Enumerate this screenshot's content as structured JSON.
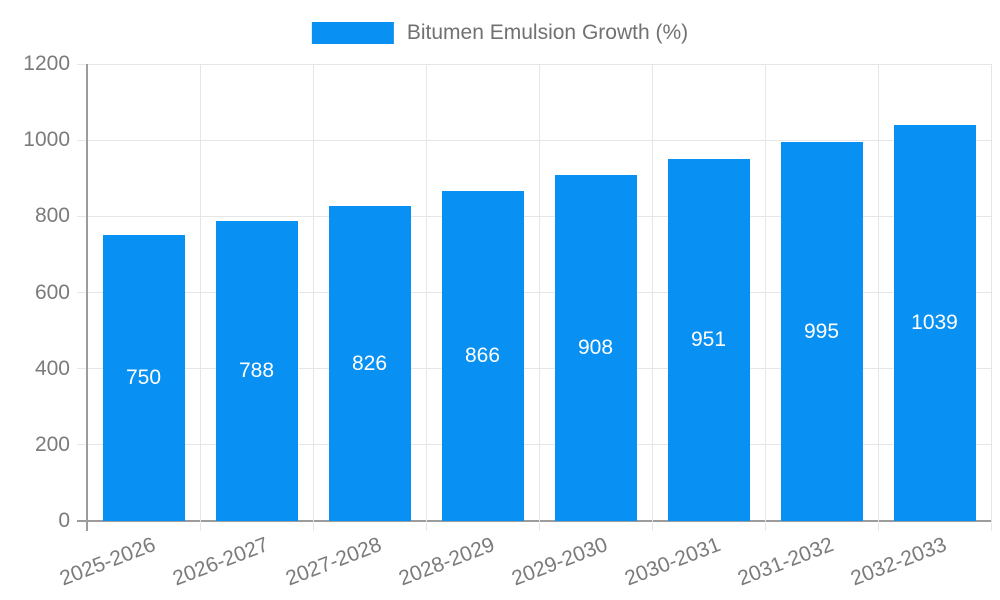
{
  "legend": {
    "label": "Bitumen Emulsion Growth (%)"
  },
  "colors": {
    "bar": "#0890f2",
    "grid": "#e6e6e6",
    "axis": "#9c9c9c",
    "tick_label": "#7b7b7b",
    "legend_text": "#717171",
    "value_label": "#ffffff",
    "background": "#ffffff"
  },
  "chart_data": {
    "type": "bar",
    "title": "",
    "xlabel": "",
    "ylabel": "",
    "series": [
      {
        "name": "Bitumen Emulsion Growth (%)",
        "values": [
          750,
          788,
          826,
          866,
          908,
          951,
          995,
          1039
        ]
      }
    ],
    "categories": [
      "2025-2026",
      "2026-2027",
      "2027-2028",
      "2028-2029",
      "2029-2030",
      "2030-2031",
      "2031-2032",
      "2032-2033"
    ],
    "values": [
      750,
      788,
      826,
      866,
      908,
      951,
      995,
      1039
    ],
    "value_labels_shown": true,
    "value_label_position": "inside-center",
    "ylim": [
      0,
      1200
    ],
    "ytick_step": 200,
    "yticks": [
      0,
      200,
      400,
      600,
      800,
      1000,
      1200
    ],
    "grid": true,
    "legend_position": "top-center",
    "x_label_rotation_deg": -21
  }
}
